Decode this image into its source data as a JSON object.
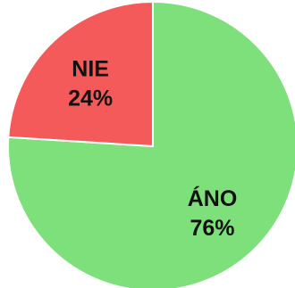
{
  "chart_data": {
    "type": "pie",
    "title": "",
    "start_angle_deg": 0,
    "direction": "clockwise",
    "slices": [
      {
        "label": "ÁNO",
        "value": 76,
        "value_text": "76%",
        "color": "#7ee07a"
      },
      {
        "label": "NIE",
        "value": 24,
        "value_text": "24%",
        "color": "#f45a5a"
      }
    ],
    "edge_color": "#ffffff"
  }
}
